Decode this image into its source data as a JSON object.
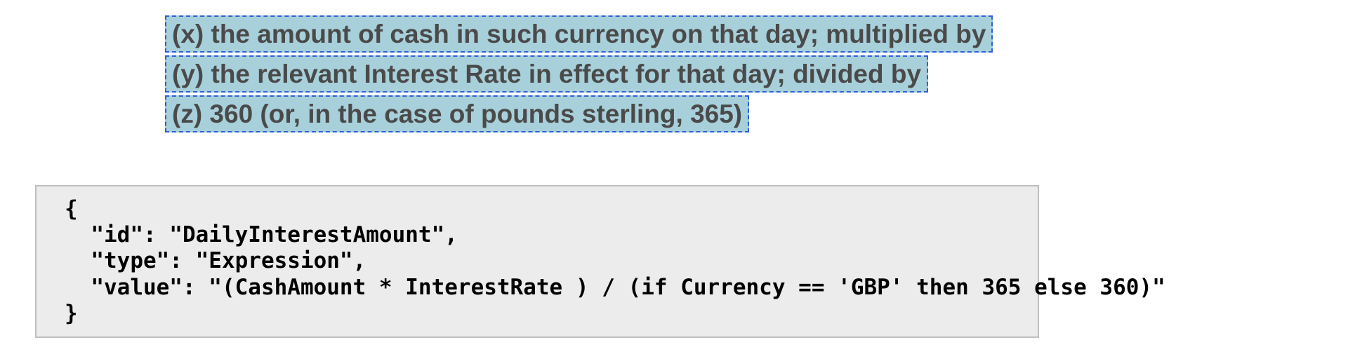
{
  "clauses": {
    "x": "(x) the amount of cash in such currency on that day; multiplied by",
    "y": "(y) the relevant Interest Rate in effect for that day; divided by",
    "z": "(z) 360 (or, in the case of pounds sterling, 365)"
  },
  "clause_style": {
    "highlight_background": "#a8d0db",
    "highlight_border": "#2f5fd6",
    "text_color": "#4a4a4a",
    "font_size_pt": 28,
    "font_weight": "bold",
    "border_style": "dashed"
  },
  "code": {
    "line1": "{",
    "line2": "  \"id\": \"DailyInterestAmount\",",
    "line3": "  \"type\": \"Expression\",",
    "line4": "  \"value\": \"(CashAmount * InterestRate ) / (if Currency == 'GBP' then 365 else 360)\"",
    "line5": "}"
  },
  "code_style": {
    "background": "#ececec",
    "border_color": "#bfbfbf",
    "text_color": "#000000",
    "font_family": "monospace",
    "font_size_pt": 23,
    "font_weight": "bold"
  },
  "page_background": "#ffffff"
}
